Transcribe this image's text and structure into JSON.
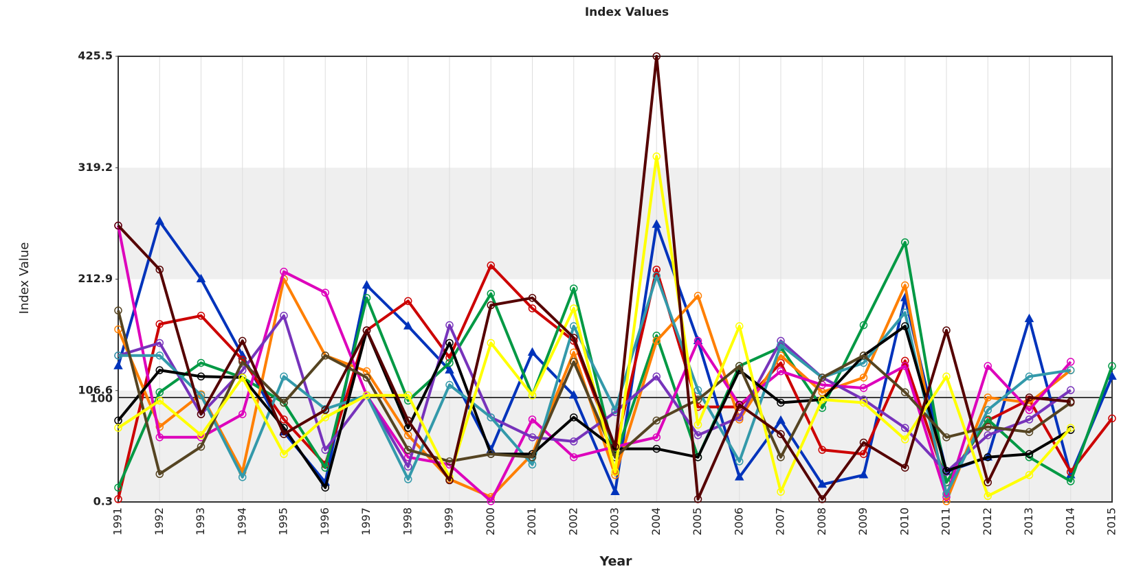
{
  "chart_data": {
    "type": "line",
    "title": "Index Values",
    "x_label": "Year",
    "y_label": "Index Value",
    "categories": [
      "1991",
      "1992",
      "1993",
      "1994",
      "1995",
      "1996",
      "1997",
      "1998",
      "1999",
      "2000",
      "2001",
      "2002",
      "2003",
      "2004",
      "2005",
      "2006",
      "2007",
      "2008",
      "2009",
      "2010",
      "2011",
      "2012",
      "2013",
      "2014",
      "2015"
    ],
    "ylim": [
      0.3,
      425.5
    ],
    "yticks": [
      0.3,
      106.6,
      212.9,
      319.2,
      425.5
    ],
    "alternate_bands": true,
    "grid": true,
    "reference_line": {
      "value": 100,
      "label": "100"
    },
    "series": [
      {
        "color": "#0033bb",
        "marker": "triangle",
        "values": [
          130,
          268,
          213,
          140,
          67,
          19,
          207,
          168,
          126,
          50,
          143,
          102,
          10,
          265,
          154,
          24,
          78,
          17,
          26,
          195,
          29,
          43,
          175,
          26,
          120
        ]
      },
      {
        "color": "#cc0000",
        "marker": "circle",
        "values": [
          3,
          170,
          178,
          136,
          79,
          36,
          164,
          192,
          138,
          226,
          185,
          154,
          50,
          222,
          91,
          91,
          133,
          50,
          46,
          135,
          19,
          78,
          98,
          29,
          80
        ]
      },
      {
        "color": "#009944",
        "marker": "circle",
        "values": [
          14,
          105,
          133,
          119,
          95,
          33,
          195,
          97,
          133,
          199,
          102,
          204,
          43,
          159,
          43,
          130,
          148,
          90,
          169,
          248,
          19,
          79,
          43,
          20,
          130
        ]
      },
      {
        "color": "#ff7f00",
        "marker": "circle",
        "values": [
          165,
          72,
          103,
          29,
          213,
          140,
          125,
          64,
          22,
          5,
          46,
          143,
          26,
          154,
          197,
          79,
          140,
          105,
          119,
          207,
          1,
          100,
          95,
          126,
          null
        ]
      },
      {
        "color": "#dd00bb",
        "marker": "circle",
        "values": [
          264,
          62,
          62,
          84,
          220,
          200,
          102,
          43,
          36,
          1,
          79,
          43,
          53,
          62,
          154,
          93,
          125,
          112,
          109,
          130,
          5,
          130,
          88,
          134,
          null
        ]
      },
      {
        "color": "#7733bb",
        "marker": "circle",
        "values": [
          140,
          152,
          84,
          126,
          178,
          50,
          102,
          34,
          169,
          81,
          62,
          58,
          86,
          120,
          64,
          81,
          154,
          119,
          98,
          71,
          29,
          64,
          79,
          107,
          null
        ]
      },
      {
        "color": "#3399aa",
        "marker": "circle",
        "values": [
          140,
          140,
          102,
          24,
          120,
          89,
          102,
          22,
          112,
          81,
          36,
          168,
          88,
          216,
          107,
          39,
          150,
          119,
          133,
          181,
          8,
          88,
          120,
          126,
          null
        ]
      },
      {
        "color": "#000000",
        "marker": "circle",
        "values": [
          78,
          126,
          120,
          119,
          71,
          14,
          164,
          71,
          152,
          46,
          46,
          81,
          51,
          51,
          43,
          126,
          95,
          98,
          140,
          168,
          30,
          43,
          46,
          69,
          null
        ]
      },
      {
        "color": "#554422",
        "marker": "circle",
        "values": [
          183,
          27,
          53,
          134,
          95,
          140,
          119,
          50,
          39,
          46,
          43,
          134,
          43,
          78,
          98,
          130,
          43,
          119,
          140,
          105,
          62,
          72,
          67,
          95,
          null
        ]
      },
      {
        "color": "#ffff00",
        "marker": "circle",
        "values": [
          71,
          97,
          64,
          119,
          46,
          81,
          102,
          102,
          24,
          152,
          102,
          185,
          29,
          330,
          74,
          168,
          10,
          98,
          95,
          60,
          120,
          6,
          26,
          71,
          null
        ]
      },
      {
        "color": "#550000",
        "marker": "circle",
        "values": [
          264,
          222,
          84,
          154,
          65,
          88,
          164,
          78,
          21,
          188,
          195,
          157,
          53,
          425.5,
          3,
          93,
          65,
          3,
          57,
          33,
          164,
          19,
          100,
          96,
          null
        ]
      }
    ]
  }
}
